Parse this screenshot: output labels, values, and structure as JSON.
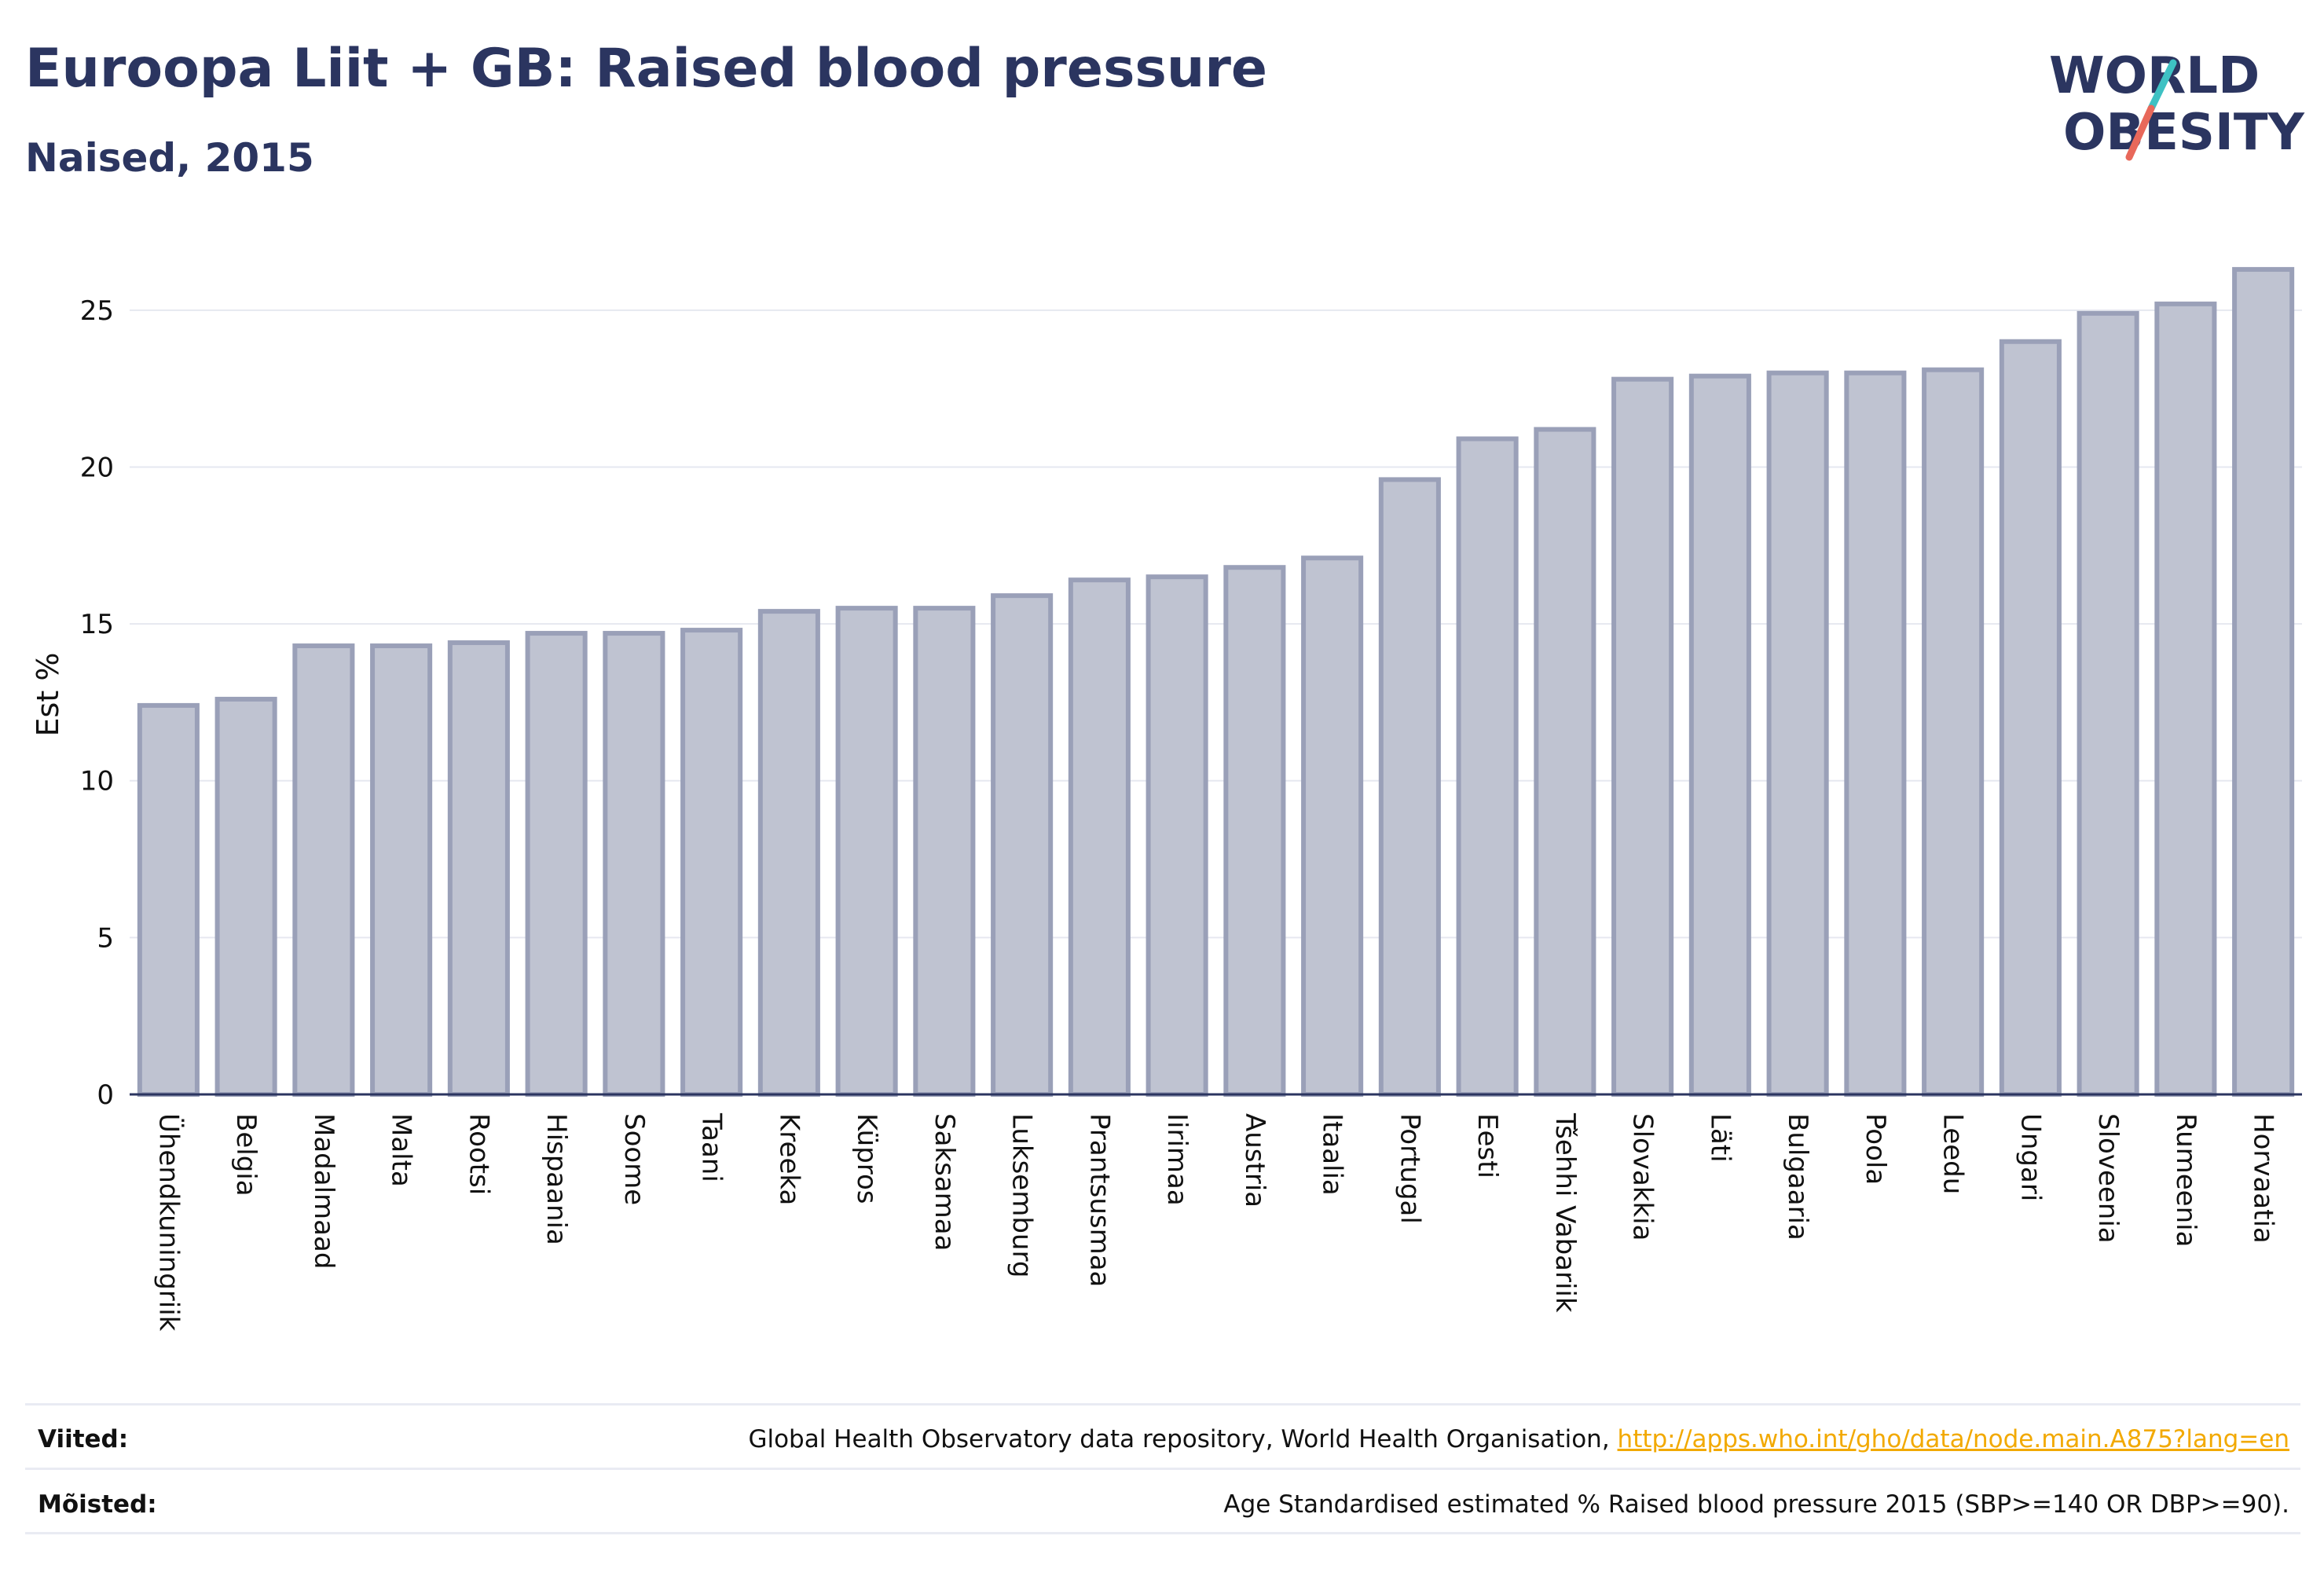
{
  "header": {
    "title": "Euroopa Liit + GB: Raised blood pressure",
    "subtitle": "Naised, 2015"
  },
  "logo": {
    "line1": "WORLD",
    "line2": "OBESITY",
    "colors": {
      "text": "#2b3560",
      "slash_top": "#3ec1c3",
      "slash_bottom": "#e8685a"
    }
  },
  "chart_data": {
    "type": "bar",
    "ylabel": "Est %",
    "ylim": [
      0,
      27.5
    ],
    "yticks": [
      0,
      5,
      10,
      15,
      20,
      25
    ],
    "grid": true,
    "bar_fill": "#bfc3d1",
    "bar_stroke": "#9aa0b8",
    "categories": [
      "Ühendkuningriik",
      "Belgia",
      "Madalmaad",
      "Malta",
      "Rootsi",
      "Hispaania",
      "Soome",
      "Taani",
      "Kreeka",
      "Küpros",
      "Saksamaa",
      "Luksemburg",
      "Prantsusmaa",
      "Iirimaa",
      "Austria",
      "Itaalia",
      "Portugal",
      "Eesti",
      "Tšehhi Vabariik",
      "Slovakkia",
      "Läti",
      "Bulgaaria",
      "Poola",
      "Leedu",
      "Ungari",
      "Sloveenia",
      "Rumeenia",
      "Horvaatia"
    ],
    "values": [
      12.4,
      12.6,
      14.3,
      14.3,
      14.4,
      14.7,
      14.7,
      14.8,
      15.4,
      15.5,
      15.5,
      15.9,
      16.4,
      16.5,
      16.8,
      17.1,
      19.6,
      20.9,
      21.2,
      22.8,
      22.9,
      23.0,
      23.0,
      23.1,
      24.0,
      24.9,
      25.2,
      26.3
    ]
  },
  "footer": {
    "sources_label": "Viited:",
    "sources_text": "Global Health Observatory data repository, World Health Organisation, ",
    "sources_link": "http://apps.who.int/gho/data/node.main.A875?lang=en",
    "definitions_label": "Mõisted:",
    "definitions_text": "Age Standardised estimated % Raised blood pressure 2015 (SBP>=140 OR DBP>=90)."
  }
}
